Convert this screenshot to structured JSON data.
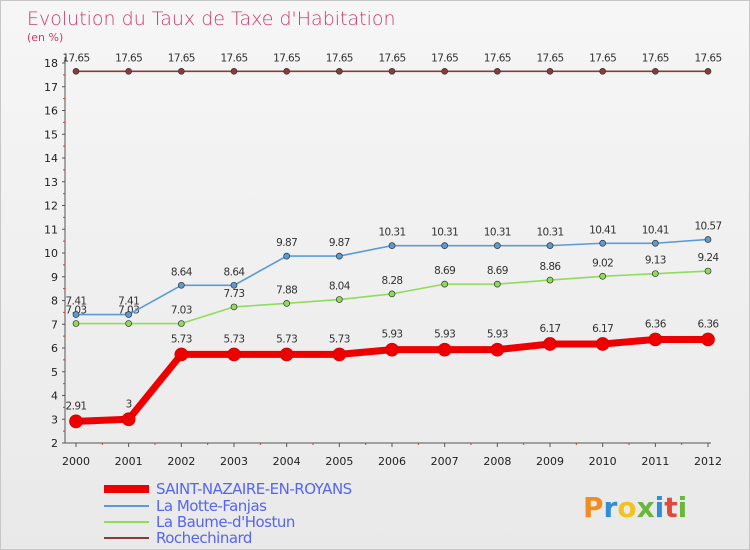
{
  "title": "Evolution du Taux de Taxe d'Habitation",
  "subtitle": "(en %)",
  "logo": "Proxiti",
  "chart_data": {
    "type": "line",
    "title": "Evolution du Taux de Taxe d'Habitation",
    "ylabel": "(en %)",
    "xlabel": "",
    "x": [
      2000,
      2001,
      2002,
      2003,
      2004,
      2005,
      2006,
      2007,
      2008,
      2009,
      2010,
      2011,
      2012
    ],
    "ylim": [
      2,
      18
    ],
    "yticks": [
      2,
      3,
      4,
      5,
      6,
      7,
      8,
      9,
      10,
      11,
      12,
      13,
      14,
      15,
      16,
      17,
      18
    ],
    "grid": false,
    "legend": "bottom-left",
    "series": [
      {
        "name": "SAINT-NAZAIRE-EN-ROYANS",
        "color": "#ee0000",
        "values": [
          2.91,
          3,
          5.73,
          5.73,
          5.73,
          5.73,
          5.93,
          5.93,
          5.93,
          6.17,
          6.17,
          6.36,
          6.36
        ],
        "labels": [
          "2.91",
          "3",
          "5.73",
          "5.73",
          "5.73",
          "5.73",
          "5.93",
          "5.93",
          "5.93",
          "6.17",
          "6.17",
          "6.36",
          "6.36"
        ]
      },
      {
        "name": "La Motte-Fanjas",
        "color": "#5b9bd5",
        "values": [
          7.41,
          7.41,
          8.64,
          8.64,
          9.87,
          9.87,
          10.31,
          10.31,
          10.31,
          10.31,
          10.41,
          10.41,
          10.57
        ],
        "labels": [
          "7.41",
          "7.41",
          "8.64",
          "8.64",
          "9.87",
          "9.87",
          "10.31",
          "10.31",
          "10.31",
          "10.31",
          "10.41",
          "10.41",
          "10.57"
        ]
      },
      {
        "name": "La Baume-d'Hostun",
        "color": "#8fdc5a",
        "values": [
          7.03,
          7.03,
          7.03,
          7.73,
          7.88,
          8.04,
          8.28,
          8.69,
          8.69,
          8.86,
          9.02,
          9.13,
          9.24
        ],
        "labels": [
          "7.03",
          "7.03",
          "7.03",
          "7.73",
          "7.88",
          "8.04",
          "8.28",
          "8.69",
          "8.69",
          "8.86",
          "9.02",
          "9.13",
          "9.24"
        ]
      },
      {
        "name": "Rochechinard",
        "color": "#8b3a3a",
        "values": [
          17.65,
          17.65,
          17.65,
          17.65,
          17.65,
          17.65,
          17.65,
          17.65,
          17.65,
          17.65,
          17.65,
          17.65,
          17.65
        ],
        "labels": [
          "17.65",
          "17.65",
          "17.65",
          "17.65",
          "17.65",
          "17.65",
          "17.65",
          "17.65",
          "17.65",
          "17.65",
          "17.65",
          "17.65",
          "17.65"
        ]
      }
    ]
  }
}
